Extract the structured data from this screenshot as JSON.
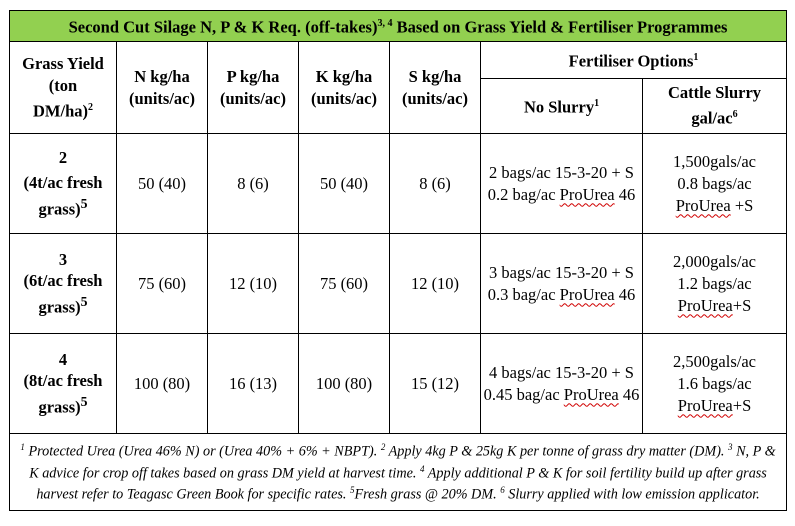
{
  "title": {
    "text": "Second Cut Silage N, P & K Req. (off-takes)",
    "sup": "3, 4",
    "text2": " Based on Grass Yield &  Fertiliser Programmes"
  },
  "headers": {
    "grass_yield_l1": "Grass Yield",
    "grass_yield_l2": "(ton",
    "grass_yield_l3": "DM/ha)",
    "grass_yield_sup": "2",
    "n": "N kg/ha (units/ac)",
    "p": "P kg/ha (units/ac)",
    "k": "K kg/ha (units/ac)",
    "s": "S kg/ha (units/ac)",
    "fert_options": "Fertiliser Options",
    "fert_options_sup": "1",
    "no_slurry": "No Slurry",
    "no_slurry_sup": "1",
    "cattle_slurry_l1": "Cattle Slurry",
    "cattle_slurry_l2": "gal/ac",
    "cattle_slurry_sup": "6"
  },
  "rows": [
    {
      "yield_num": "2",
      "yield_desc": "(4t/ac fresh grass)",
      "yield_sup": "5",
      "n": "50 (40)",
      "p": "8 (6)",
      "k": "50 (40)",
      "s": "8 (6)",
      "no_slurry_1": "2 bags/ac 15-3-20 + S",
      "no_slurry_2a": "0.2 bag/ac ",
      "no_slurry_2b": "ProUrea",
      "no_slurry_2c": " 46",
      "slurry_1": "1,500gals/ac",
      "slurry_2": "0.8 bags/ac",
      "slurry_3a": "ProUrea",
      "slurry_3b": " +S"
    },
    {
      "yield_num": "3",
      "yield_desc": "(6t/ac fresh grass)",
      "yield_sup": "5",
      "n": "75 (60)",
      "p": "12 (10)",
      "k": "75 (60)",
      "s": "12 (10)",
      "no_slurry_1": "3 bags/ac 15-3-20 + S",
      "no_slurry_2a": "0.3 bag/ac ",
      "no_slurry_2b": "ProUrea",
      "no_slurry_2c": " 46",
      "slurry_1": "2,000gals/ac",
      "slurry_2": "1.2 bags/ac",
      "slurry_3a": "ProUrea",
      "slurry_3b": "+S"
    },
    {
      "yield_num": "4",
      "yield_desc": "(8t/ac fresh grass)",
      "yield_sup": "5",
      "n": "100 (80)",
      "p": "16 (13)",
      "k": "100 (80)",
      "s": "15 (12)",
      "no_slurry_1": "4 bags/ac 15-3-20 + S",
      "no_slurry_2a": "0.45 bag/ac ",
      "no_slurry_2b": "ProUrea",
      "no_slurry_2c": " 46",
      "slurry_1": "2,500gals/ac",
      "slurry_2": "1.6 bags/ac",
      "slurry_3a": "ProUrea",
      "slurry_3b": "+S"
    }
  ],
  "footnote": {
    "s1": "1",
    "t1": " Protected Urea (Urea 46% N) or (Urea 40% + 6% + NBPT).  ",
    "s2": "2",
    "t2": " Apply 4kg P & 25kg K per tonne of grass dry matter (DM).  ",
    "s3": "3",
    "t3": " N, P & K advice for crop off takes based on grass DM yield at harvest time.  ",
    "s4": "4",
    "t4": " Apply additional P & K for soil fertility  build up after grass harvest refer to Teagasc Green Book for specific rates.  ",
    "s5": "5",
    "t5": "Fresh grass @ 20% DM. ",
    "s6": "6",
    "t6": " Slurry applied with low emission applicator."
  },
  "colors": {
    "title_bg": "#92d050",
    "spellcheck_underline": "#d00000"
  }
}
